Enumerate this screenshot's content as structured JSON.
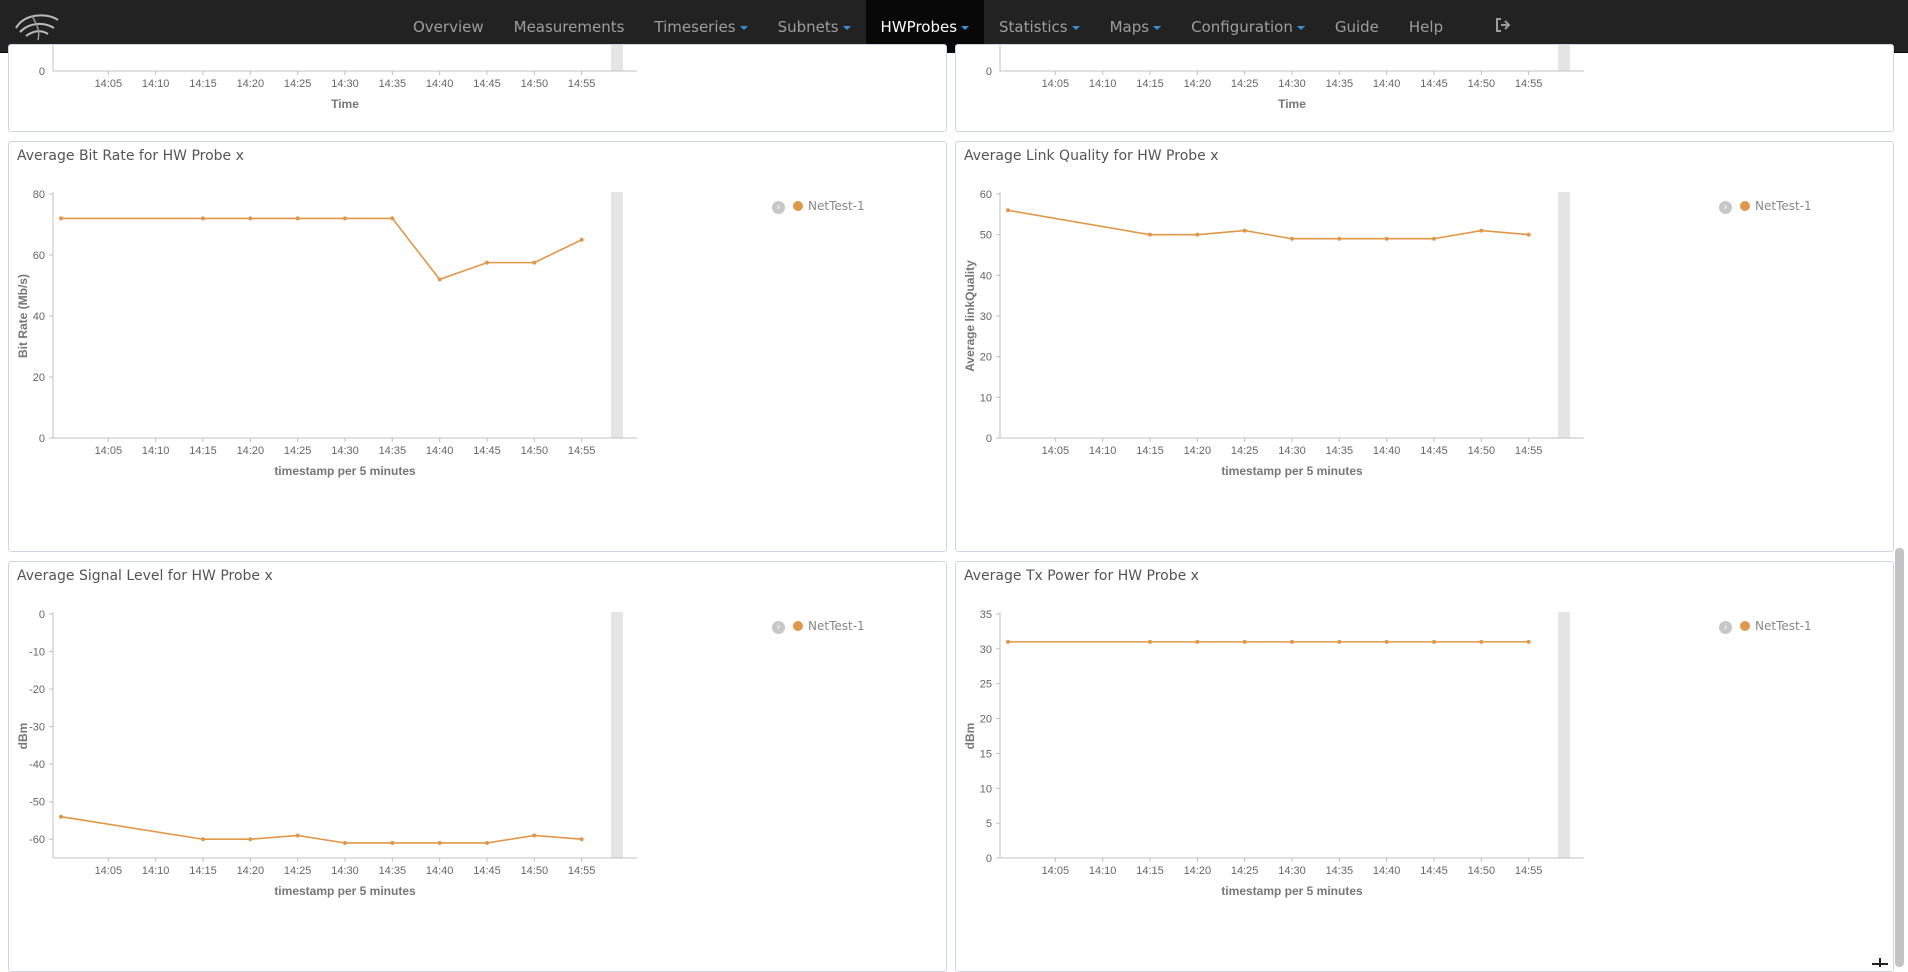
{
  "nav": {
    "items": [
      {
        "label": "Overview",
        "dropdown": false,
        "active": false
      },
      {
        "label": "Measurements",
        "dropdown": false,
        "active": false
      },
      {
        "label": "Timeseries",
        "dropdown": true,
        "active": false
      },
      {
        "label": "Subnets",
        "dropdown": true,
        "active": false
      },
      {
        "label": "HWProbes",
        "dropdown": true,
        "active": true
      },
      {
        "label": "Statistics",
        "dropdown": true,
        "active": false
      },
      {
        "label": "Maps",
        "dropdown": true,
        "active": false
      },
      {
        "label": "Configuration",
        "dropdown": true,
        "active": false
      },
      {
        "label": "Guide",
        "dropdown": false,
        "active": false
      },
      {
        "label": "Help",
        "dropdown": false,
        "active": false
      }
    ],
    "logo_icon": "wifi-swoosh-logo",
    "logout_icon": "logout-icon"
  },
  "colors": {
    "series": "#e09848",
    "navbar": "#222222",
    "panel_border": "#cfd6e2"
  },
  "top_panels": [
    {
      "x_ticks": [
        "14:05",
        "14:10",
        "14:15",
        "14:20",
        "14:25",
        "14:30",
        "14:35",
        "14:40",
        "14:45",
        "14:50",
        "14:55"
      ],
      "y_tick": "0",
      "xlabel": "Time"
    },
    {
      "x_ticks": [
        "14:05",
        "14:10",
        "14:15",
        "14:20",
        "14:25",
        "14:30",
        "14:35",
        "14:40",
        "14:45",
        "14:50",
        "14:55"
      ],
      "y_tick": "0",
      "xlabel": "Time"
    }
  ],
  "chart_data": [
    {
      "type": "line",
      "title": "Average Bit Rate for HW Probe x",
      "xlabel": "timestamp per 5 minutes",
      "ylabel": "Bit Rate (Mb/s)",
      "ylim": [
        0,
        80
      ],
      "yticks": [
        0,
        20,
        40,
        60,
        80
      ],
      "x_ticks": [
        "14:05",
        "14:10",
        "14:15",
        "14:20",
        "14:25",
        "14:30",
        "14:35",
        "14:40",
        "14:45",
        "14:50",
        "14:55"
      ],
      "legend_placement": "top-right",
      "series": [
        {
          "name": "NetTest-1",
          "x": [
            "14:00",
            "14:15",
            "14:20",
            "14:25",
            "14:30",
            "14:35",
            "14:40",
            "14:45",
            "14:50",
            "14:55"
          ],
          "values": [
            72,
            72,
            72,
            72,
            72,
            72,
            52,
            57.5,
            57.5,
            65
          ]
        }
      ]
    },
    {
      "type": "line",
      "title": "Average Link Quality for HW Probe x",
      "xlabel": "timestamp per 5 minutes",
      "ylabel": "Average linkQuality",
      "ylim": [
        0,
        60
      ],
      "yticks": [
        0,
        10,
        20,
        30,
        40,
        50,
        60
      ],
      "x_ticks": [
        "14:05",
        "14:10",
        "14:15",
        "14:20",
        "14:25",
        "14:30",
        "14:35",
        "14:40",
        "14:45",
        "14:50",
        "14:55"
      ],
      "legend_placement": "top-right",
      "series": [
        {
          "name": "NetTest-1",
          "x": [
            "14:00",
            "14:15",
            "14:20",
            "14:25",
            "14:30",
            "14:35",
            "14:40",
            "14:45",
            "14:50",
            "14:55"
          ],
          "values": [
            56,
            50,
            50,
            51,
            49,
            49,
            49,
            49,
            51,
            50
          ]
        }
      ]
    },
    {
      "type": "line",
      "title": "Average Signal Level for HW Probe x",
      "xlabel": "timestamp per 5 minutes",
      "ylabel": "dBm",
      "ylim": [
        -65,
        0
      ],
      "yticks": [
        0,
        -10,
        -20,
        -30,
        -40,
        -50,
        -60
      ],
      "x_ticks": [
        "14:05",
        "14:10",
        "14:15",
        "14:20",
        "14:25",
        "14:30",
        "14:35",
        "14:40",
        "14:45",
        "14:50",
        "14:55"
      ],
      "legend_placement": "top-right",
      "series": [
        {
          "name": "NetTest-1",
          "x": [
            "14:00",
            "14:15",
            "14:20",
            "14:25",
            "14:30",
            "14:35",
            "14:40",
            "14:45",
            "14:50",
            "14:55"
          ],
          "values": [
            -54,
            -60,
            -60,
            -59,
            -61,
            -61,
            -61,
            -61,
            -59,
            -60
          ]
        }
      ]
    },
    {
      "type": "line",
      "title": "Average Tx Power for HW Probe x",
      "xlabel": "timestamp per 5 minutes",
      "ylabel": "dBm",
      "ylim": [
        0,
        35
      ],
      "yticks": [
        0,
        5,
        10,
        15,
        20,
        25,
        30,
        35
      ],
      "x_ticks": [
        "14:05",
        "14:10",
        "14:15",
        "14:20",
        "14:25",
        "14:30",
        "14:35",
        "14:40",
        "14:45",
        "14:50",
        "14:55"
      ],
      "legend_placement": "top-right",
      "series": [
        {
          "name": "NetTest-1",
          "x": [
            "14:00",
            "14:15",
            "14:20",
            "14:25",
            "14:30",
            "14:35",
            "14:40",
            "14:45",
            "14:50",
            "14:55"
          ],
          "values": [
            31,
            31,
            31,
            31,
            31,
            31,
            31,
            31,
            31,
            31
          ]
        }
      ]
    }
  ]
}
